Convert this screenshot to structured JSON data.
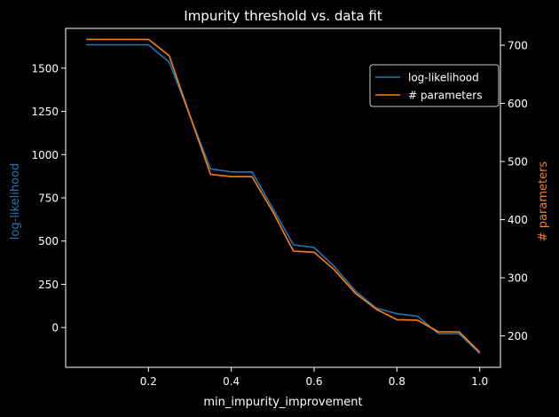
{
  "chart_data": {
    "type": "line",
    "title": "Impurity threshold vs. data fit",
    "xlabel": "min_impurity_improvement",
    "ylabel_left": "log-likelihood",
    "ylabel_right": "# parameters",
    "xlim": [
      0.0,
      1.05
    ],
    "xticks": [
      0.2,
      0.4,
      0.6,
      0.8,
      1.0
    ],
    "xtick_labels": [
      "0.2",
      "0.4",
      "0.6",
      "0.8",
      "1.0"
    ],
    "ylim_left": [
      -230,
      1730
    ],
    "yticks_left": [
      0,
      250,
      500,
      750,
      1000,
      1250,
      1500
    ],
    "yticks_right": [
      200,
      300,
      400,
      500,
      600,
      700
    ],
    "ylim_right": [
      146,
      729
    ],
    "x": [
      0.05,
      0.1,
      0.15,
      0.2,
      0.25,
      0.3,
      0.35,
      0.4,
      0.45,
      0.5,
      0.55,
      0.6,
      0.65,
      0.7,
      0.75,
      0.8,
      0.85,
      0.9,
      0.95,
      1.0
    ],
    "series": [
      {
        "name": "log-likelihood",
        "axis": "left",
        "color": "#1f77b4",
        "values": [
          1635,
          1635,
          1635,
          1635,
          1535,
          1225,
          918,
          900,
          900,
          690,
          478,
          463,
          350,
          210,
          112,
          80,
          65,
          -35,
          -35,
          -150
        ]
      },
      {
        "name": "# parameters",
        "axis": "right",
        "color": "#ff7f0e",
        "values": [
          710,
          710,
          710,
          710,
          682,
          579,
          478,
          474,
          474,
          414,
          346,
          344,
          313,
          273,
          246,
          228,
          227,
          207,
          207,
          172
        ]
      }
    ],
    "legend": {
      "placement": "upper-right",
      "entries": [
        "log-likelihood",
        "# parameters"
      ]
    },
    "grid": false,
    "colors": {
      "background": "#000000",
      "foreground": "#ffffff",
      "left_label": "#1f77b4",
      "right_label": "#ff7f0e"
    }
  }
}
